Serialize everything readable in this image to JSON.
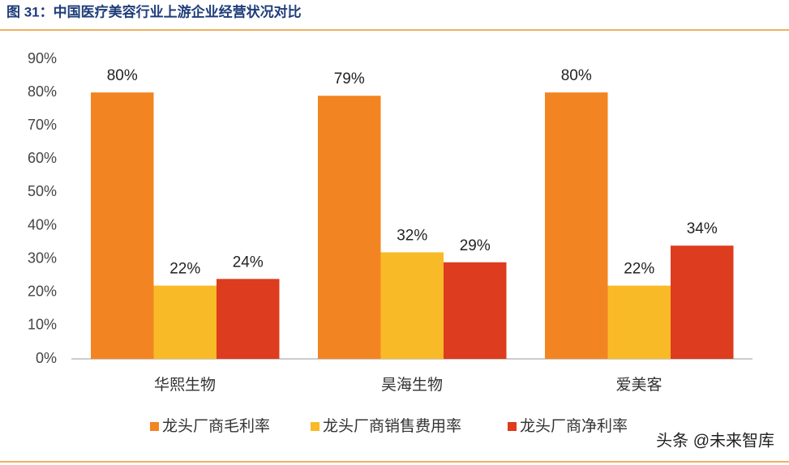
{
  "chart_data": {
    "type": "bar",
    "title": "图 31：中国医疗美容行业上游企业经营状况对比",
    "categories": [
      "华熙生物",
      "昊海生物",
      "爱美客"
    ],
    "series": [
      {
        "name": "龙头厂商毛利率",
        "color": "#f28522",
        "values": [
          80,
          79,
          80
        ],
        "value_labels": [
          "80%",
          "79%",
          "80%"
        ]
      },
      {
        "name": "龙头厂商销售费用率",
        "color": "#f9ba28",
        "values": [
          22,
          32,
          22
        ],
        "value_labels": [
          "22%",
          "32%",
          "22%"
        ]
      },
      {
        "name": "龙头厂商净利率",
        "color": "#dd3c1e",
        "values": [
          24,
          29,
          34
        ],
        "value_labels": [
          "24%",
          "29%",
          "34%"
        ]
      }
    ],
    "ylim": [
      0,
      90
    ],
    "yticks": [
      {
        "value": 0,
        "label": "0%"
      },
      {
        "value": 10,
        "label": "10%"
      },
      {
        "value": 20,
        "label": "20%"
      },
      {
        "value": 30,
        "label": "30%"
      },
      {
        "value": 40,
        "label": "40%"
      },
      {
        "value": 50,
        "label": "50%"
      },
      {
        "value": 60,
        "label": "60%"
      },
      {
        "value": 70,
        "label": "70%"
      },
      {
        "value": 80,
        "label": "80%"
      },
      {
        "value": 90,
        "label": "90%"
      }
    ],
    "legend": "bottom",
    "annotation": "头条 @未来智库"
  }
}
